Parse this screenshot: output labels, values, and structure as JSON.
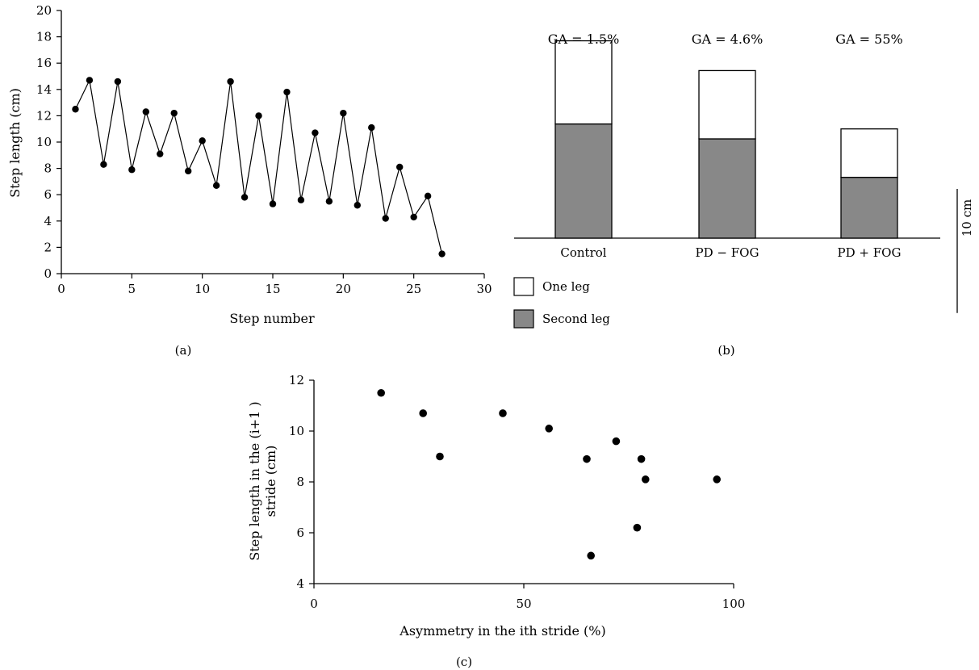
{
  "chart_data": [
    {
      "panel": "(a)",
      "type": "line",
      "xlabel": "Step number",
      "ylabel": "Step length (cm)",
      "xlim": [
        0,
        30
      ],
      "ylim": [
        0,
        20
      ],
      "xticks": [
        "0",
        "5",
        "10",
        "15",
        "20",
        "25",
        "30"
      ],
      "yticks": [
        "0",
        "2",
        "4",
        "6",
        "8",
        "10",
        "12",
        "14",
        "16",
        "18",
        "20"
      ],
      "grid": false,
      "x": [
        1,
        2,
        3,
        4,
        5,
        6,
        7,
        8,
        9,
        10,
        11,
        12,
        13,
        14,
        15,
        16,
        17,
        18,
        19,
        20,
        21,
        22,
        23,
        24,
        25,
        26,
        27
      ],
      "y": [
        12.5,
        14.7,
        8.3,
        14.6,
        7.9,
        12.3,
        9.1,
        12.2,
        7.8,
        10.1,
        6.7,
        14.6,
        5.8,
        12.0,
        5.3,
        13.8,
        5.6,
        10.7,
        5.5,
        12.2,
        5.2,
        11.1,
        4.2,
        8.1,
        4.3,
        5.9,
        1.5
      ]
    },
    {
      "panel": "(b)",
      "type": "bar",
      "stacked": true,
      "categories": [
        "Control",
        "PD − FOG",
        "PD + FOG"
      ],
      "annotations": [
        "GA = 1.5%",
        "GA = 4.6%",
        "GA = 55%"
      ],
      "series": [
        {
          "name": "Second leg",
          "color": "#888888",
          "values": [
            9.2,
            8.0,
            4.9
          ]
        },
        {
          "name": "One leg",
          "color": "#ffffff",
          "values": [
            6.7,
            5.5,
            3.9
          ]
        }
      ],
      "scale_bar": {
        "label": "10 cm",
        "value": 10
      },
      "legend": "bottom-left",
      "ylim": [
        0,
        16
      ]
    },
    {
      "panel": "(c)",
      "type": "scatter",
      "xlabel": "Asymmetry in the ith stride (%)",
      "ylabel_line1": "Step length in the (i+1 )",
      "ylabel_line2": "stride (cm)",
      "xlim": [
        0,
        100
      ],
      "ylim": [
        4,
        12
      ],
      "xticks": [
        "0",
        "50",
        "100"
      ],
      "yticks": [
        "4",
        "6",
        "8",
        "10",
        "12"
      ],
      "grid": false,
      "x": [
        16,
        26,
        30,
        45,
        56,
        65,
        66,
        72,
        77,
        78,
        79,
        96
      ],
      "y": [
        11.5,
        10.7,
        9.0,
        10.7,
        10.1,
        8.9,
        5.1,
        9.6,
        6.2,
        8.9,
        8.1,
        8.1
      ]
    }
  ]
}
